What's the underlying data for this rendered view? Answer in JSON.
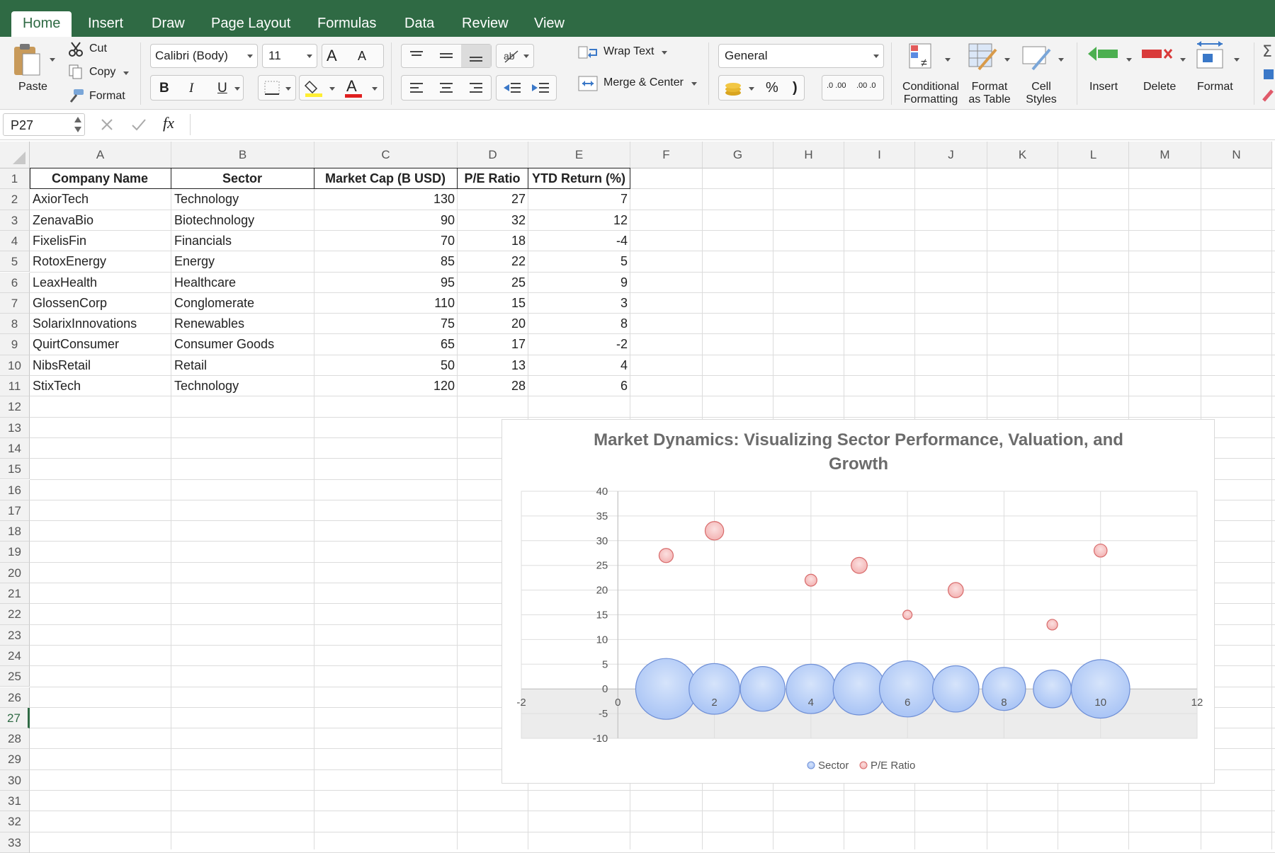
{
  "ribbon_tabs": [
    "Home",
    "Insert",
    "Draw",
    "Page Layout",
    "Formulas",
    "Data",
    "Review",
    "View"
  ],
  "clipboard": {
    "paste": "Paste",
    "cut": "Cut",
    "copy": "Copy",
    "format": "Format"
  },
  "font": {
    "name": "Calibri (Body)",
    "size": "11",
    "bold": "B",
    "italic": "I",
    "underline": "U",
    "font_color_glyph": "A",
    "grow_glyph": "A",
    "shrink_glyph": "A"
  },
  "alignment": {
    "wrap_text": "Wrap Text",
    "merge_center": "Merge & Center"
  },
  "number": {
    "format": "General",
    "percent": "%",
    "comma": ")",
    "inc_decimal": ".0 .00",
    "dec_decimal": ".00 .0"
  },
  "styles": {
    "conditional_1": "Conditional",
    "conditional_2": "Formatting",
    "format_table_1": "Format",
    "format_table_2": "as Table",
    "cell_styles_1": "Cell",
    "cell_styles_2": "Styles"
  },
  "cells": {
    "insert": "Insert",
    "delete": "Delete",
    "format": "Format"
  },
  "colors": {
    "accent": "#2f6a44",
    "bubble_sector": "#a9c4f5",
    "bubble_pe": "#f3b3b3"
  },
  "formula_bar": {
    "name_box": "P27",
    "fx": "fx",
    "formula": ""
  },
  "columns": [
    "A",
    "B",
    "C",
    "D",
    "E",
    "F",
    "G",
    "H",
    "I",
    "J",
    "K",
    "L",
    "M",
    "N"
  ],
  "rows": [
    "1",
    "2",
    "3",
    "4",
    "5",
    "6",
    "7",
    "8",
    "9",
    "10",
    "11",
    "12",
    "13",
    "14",
    "15",
    "16",
    "17",
    "18",
    "19",
    "20",
    "21",
    "22",
    "23",
    "24",
    "25",
    "26",
    "27",
    "28",
    "29",
    "30",
    "31",
    "32",
    "33"
  ],
  "selected_row": "27",
  "table": {
    "headers": [
      "Company Name",
      "Sector",
      "Market Cap (B USD)",
      "P/E Ratio",
      "YTD Return (%)"
    ],
    "rows": [
      [
        "AxiorTech",
        "Technology",
        "130",
        "27",
        "7"
      ],
      [
        "ZenavaBio",
        "Biotechnology",
        "90",
        "32",
        "12"
      ],
      [
        "FixelisFin",
        "Financials",
        "70",
        "18",
        "-4"
      ],
      [
        "RotoxEnergy",
        "Energy",
        "85",
        "22",
        "5"
      ],
      [
        "LeaxHealth",
        "Healthcare",
        "95",
        "25",
        "9"
      ],
      [
        "GlossenCorp",
        "Conglomerate",
        "110",
        "15",
        "3"
      ],
      [
        "SolarixInnovations",
        "Renewables",
        "75",
        "20",
        "8"
      ],
      [
        "QuirtConsumer",
        "Consumer Goods",
        "65",
        "17",
        "-2"
      ],
      [
        "NibsRetail",
        "Retail",
        "50",
        "13",
        "4"
      ],
      [
        "StixTech",
        "Technology",
        "120",
        "28",
        "6"
      ]
    ]
  },
  "chart_data": {
    "type": "bubble",
    "title": "Market Dynamics: Visualizing Sector Performance, Valuation, and Growth",
    "title_lines": [
      "Market Dynamics: Visualizing Sector Performance, Valuation, and",
      "Growth"
    ],
    "xlim": [
      -2,
      12
    ],
    "ylim": [
      -10,
      40
    ],
    "x_ticks": [
      "-2",
      "0",
      "2",
      "4",
      "6",
      "8",
      "10",
      "12"
    ],
    "y_ticks": [
      "40",
      "35",
      "30",
      "25",
      "20",
      "15",
      "10",
      "5",
      "0",
      "-5",
      "-10"
    ],
    "grid": true,
    "legend_position": "bottom",
    "series": [
      {
        "name": "Sector",
        "color": "#a9c4f5",
        "points": [
          {
            "x": 1,
            "y": 0,
            "size": 130
          },
          {
            "x": 2,
            "y": 0,
            "size": 90
          },
          {
            "x": 3,
            "y": 0,
            "size": 70
          },
          {
            "x": 4,
            "y": 0,
            "size": 85
          },
          {
            "x": 5,
            "y": 0,
            "size": 95
          },
          {
            "x": 6,
            "y": 0,
            "size": 110
          },
          {
            "x": 7,
            "y": 0,
            "size": 75
          },
          {
            "x": 8,
            "y": 0,
            "size": 65
          },
          {
            "x": 9,
            "y": 0,
            "size": 50
          },
          {
            "x": 10,
            "y": 0,
            "size": 120
          }
        ]
      },
      {
        "name": "P/E Ratio",
        "color": "#f3b3b3",
        "points": [
          {
            "x": 1,
            "y": 27,
            "size": 7
          },
          {
            "x": 2,
            "y": 32,
            "size": 12
          },
          {
            "x": 4,
            "y": 22,
            "size": 5
          },
          {
            "x": 5,
            "y": 25,
            "size": 9
          },
          {
            "x": 6,
            "y": 15,
            "size": 3
          },
          {
            "x": 7,
            "y": 20,
            "size": 8
          },
          {
            "x": 9,
            "y": 13,
            "size": 4
          },
          {
            "x": 10,
            "y": 28,
            "size": 6
          }
        ]
      }
    ]
  }
}
